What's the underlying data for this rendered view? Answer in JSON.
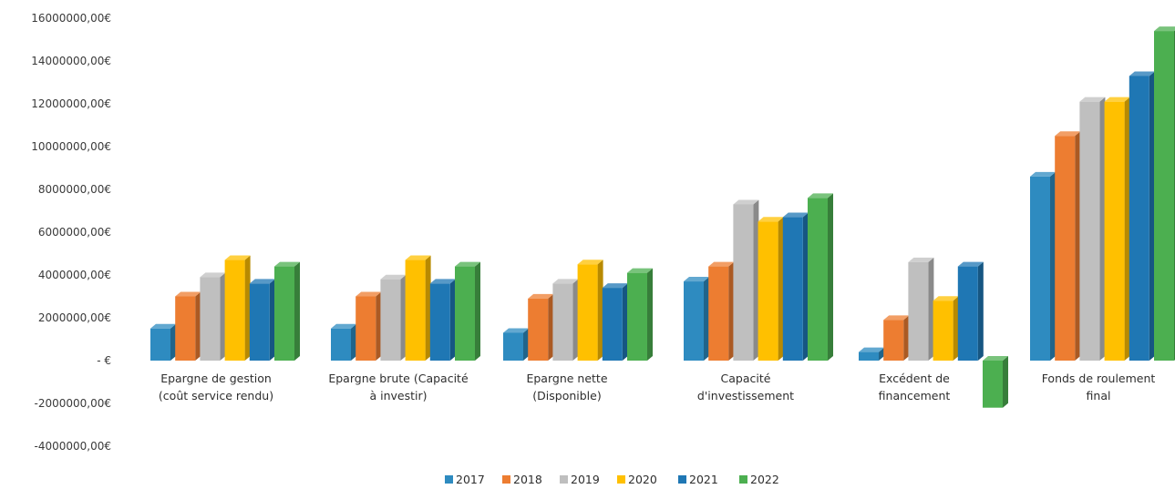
{
  "chart_data": {
    "type": "bar",
    "categories": [
      [
        "Epargne de gestion",
        "(coût service rendu)"
      ],
      [
        "Epargne brute (Capacité",
        "à investir)"
      ],
      [
        "Epargne nette",
        "(Disponible)"
      ],
      [
        "Capacité",
        "d'investissement"
      ],
      [
        "Excédent de",
        "financement"
      ],
      [
        "Fonds de roulement",
        "final"
      ]
    ],
    "series": [
      {
        "name": "2017",
        "color": "#2E8BC0",
        "values": [
          1500000,
          1500000,
          1300000,
          3700000,
          400000,
          8600000
        ]
      },
      {
        "name": "2018",
        "color": "#ED7D31",
        "values": [
          3000000,
          3000000,
          2900000,
          4400000,
          1900000,
          10500000
        ]
      },
      {
        "name": "2019",
        "color": "#BFBFBF",
        "values": [
          3900000,
          3800000,
          3600000,
          7300000,
          4600000,
          12100000
        ]
      },
      {
        "name": "2020",
        "color": "#FFC000",
        "values": [
          4700000,
          4700000,
          4500000,
          6500000,
          2800000,
          12100000
        ]
      },
      {
        "name": "2021",
        "color": "#1F77B4",
        "values": [
          3600000,
          3600000,
          3400000,
          6700000,
          4400000,
          13300000
        ]
      },
      {
        "name": "2022",
        "color": "#4CAF50",
        "values": [
          4400000,
          4400000,
          4100000,
          7600000,
          -2200000,
          15400000
        ]
      }
    ],
    "y_ticks": [
      {
        "value": 16000000,
        "label": "16000000,00€"
      },
      {
        "value": 14000000,
        "label": "14000000,00€"
      },
      {
        "value": 12000000,
        "label": "12000000,00€"
      },
      {
        "value": 10000000,
        "label": "10000000,00€"
      },
      {
        "value": 8000000,
        "label": "8000000,00€"
      },
      {
        "value": 6000000,
        "label": "6000000,00€"
      },
      {
        "value": 4000000,
        "label": "4000000,00€"
      },
      {
        "value": 2000000,
        "label": "2000000,00€"
      },
      {
        "value": 0,
        "label": "-   €"
      },
      {
        "value": -2000000,
        "label": "-2000000,00€"
      },
      {
        "value": -4000000,
        "label": "-4000000,00€"
      }
    ],
    "ylim": [
      -4000000,
      16000000
    ],
    "grid": false,
    "legend_position": "bottom",
    "style": "3d-clustered-column"
  }
}
